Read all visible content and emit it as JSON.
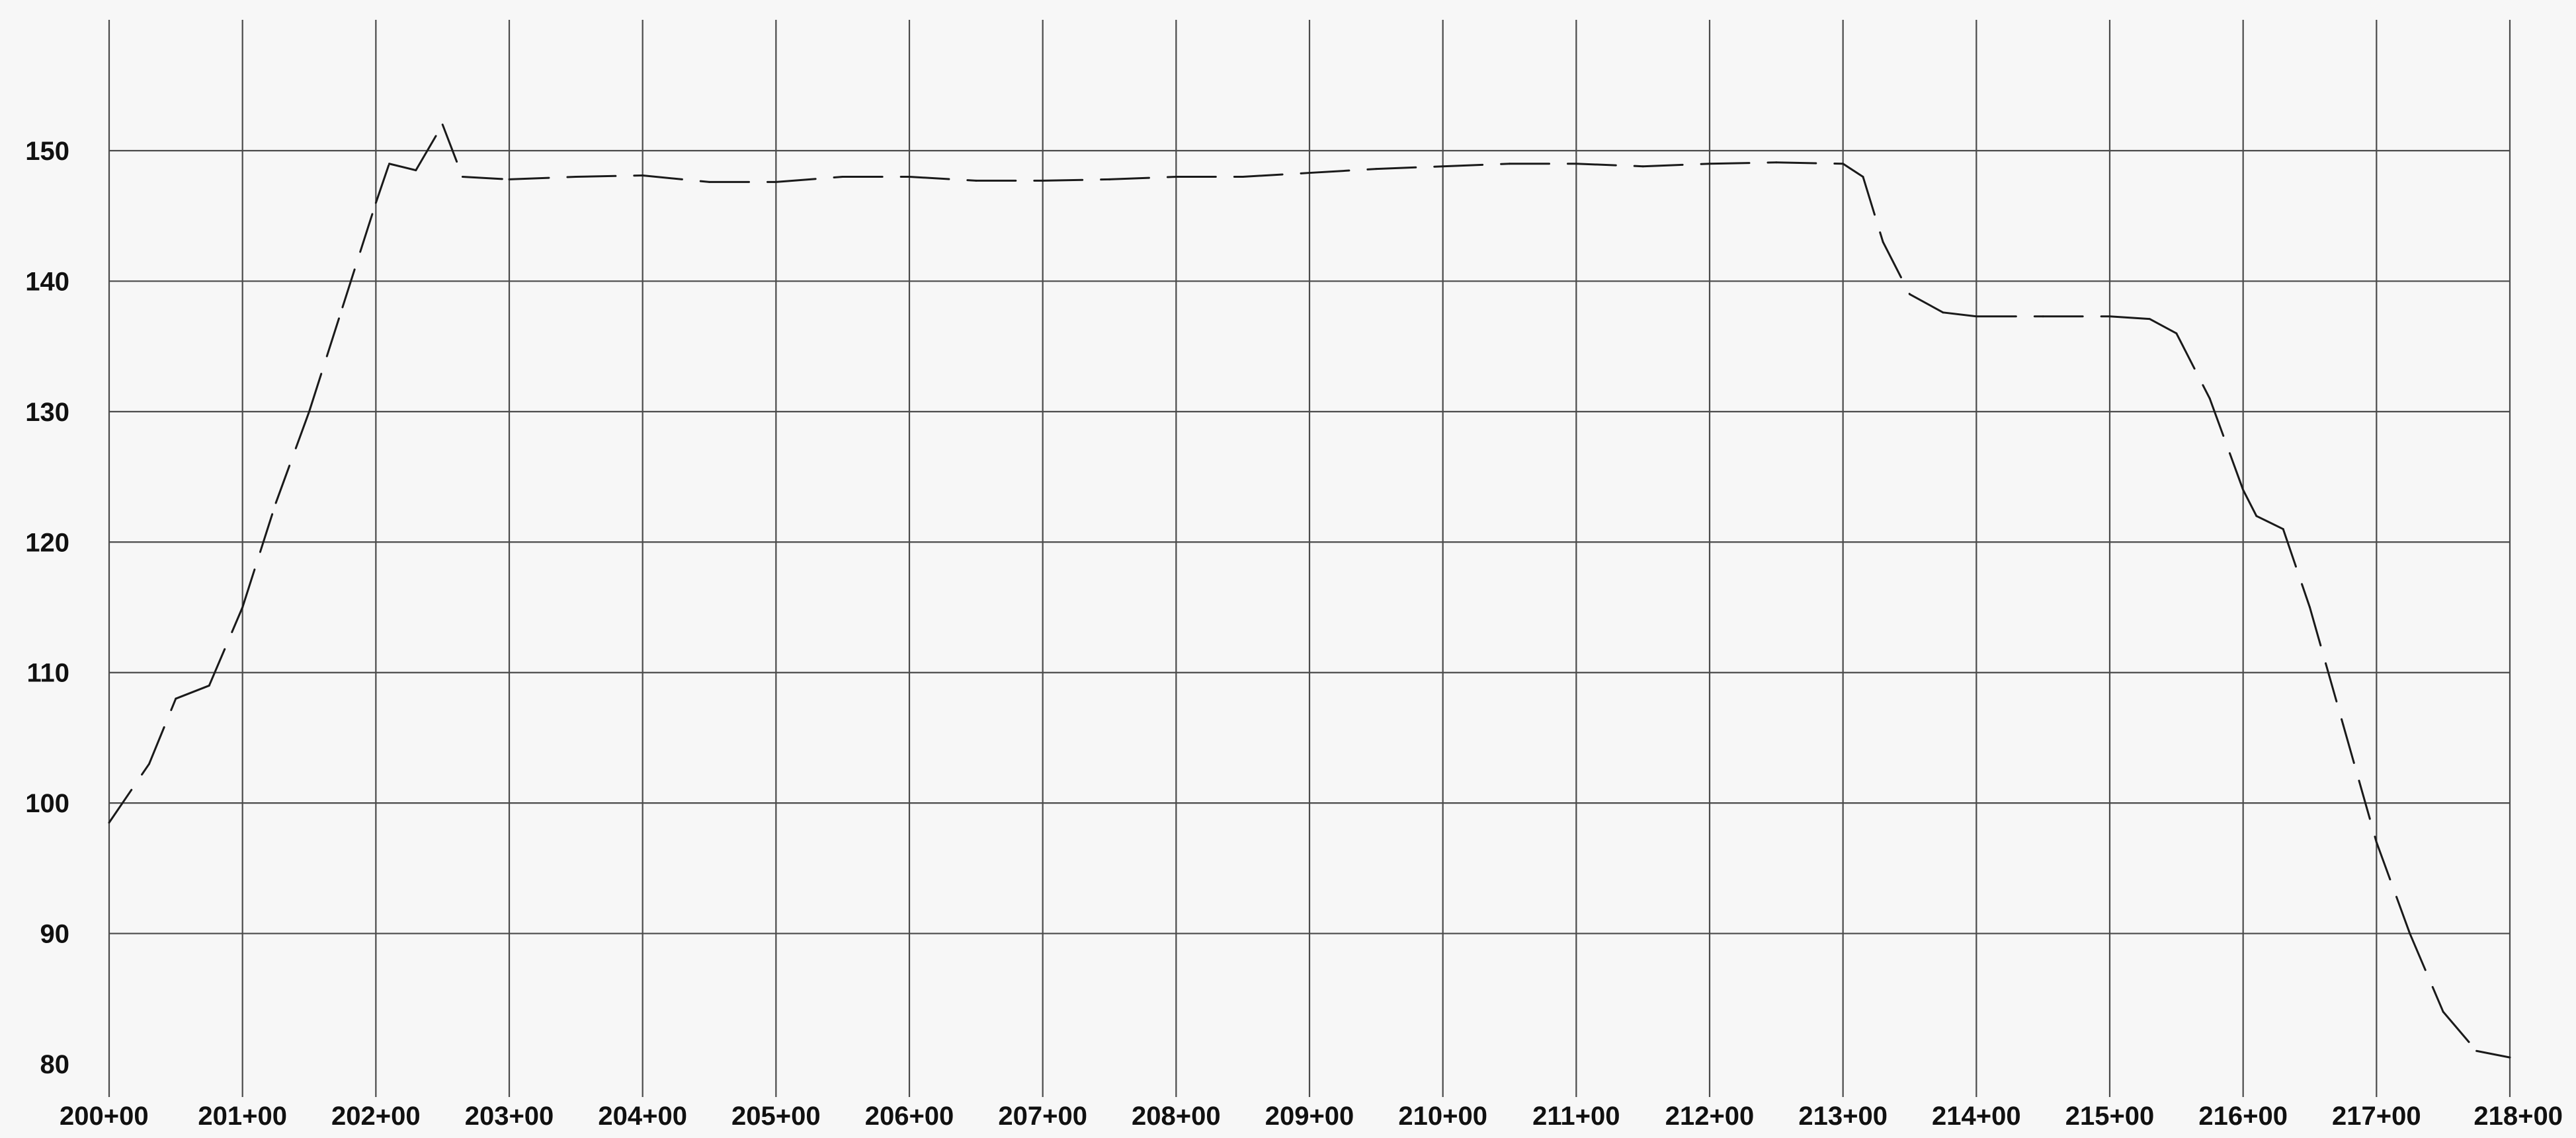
{
  "chart_data": {
    "type": "line",
    "title": "",
    "xlabel": "",
    "ylabel": "",
    "xlim": [
      200,
      218
    ],
    "ylim": [
      80,
      150
    ],
    "grid": true,
    "legend": "none",
    "x_ticks": [
      {
        "value": 200,
        "label": "200+00"
      },
      {
        "value": 201,
        "label": "201+00"
      },
      {
        "value": 202,
        "label": "202+00"
      },
      {
        "value": 203,
        "label": "203+00"
      },
      {
        "value": 204,
        "label": "204+00"
      },
      {
        "value": 205,
        "label": "205+00"
      },
      {
        "value": 206,
        "label": "206+00"
      },
      {
        "value": 207,
        "label": "207+00"
      },
      {
        "value": 208,
        "label": "208+00"
      },
      {
        "value": 209,
        "label": "209+00"
      },
      {
        "value": 210,
        "label": "210+00"
      },
      {
        "value": 211,
        "label": "211+00"
      },
      {
        "value": 212,
        "label": "212+00"
      },
      {
        "value": 213,
        "label": "213+00"
      },
      {
        "value": 214,
        "label": "214+00"
      },
      {
        "value": 215,
        "label": "215+00"
      },
      {
        "value": 216,
        "label": "216+00"
      },
      {
        "value": 217,
        "label": "217+00"
      },
      {
        "value": 218,
        "label": "218+00"
      }
    ],
    "y_ticks": [
      {
        "value": 80,
        "label": "80"
      },
      {
        "value": 90,
        "label": "90"
      },
      {
        "value": 100,
        "label": "100"
      },
      {
        "value": 110,
        "label": "110"
      },
      {
        "value": 120,
        "label": "120"
      },
      {
        "value": 130,
        "label": "130"
      },
      {
        "value": 140,
        "label": "140"
      },
      {
        "value": 150,
        "label": "150"
      }
    ],
    "series": [
      {
        "style": "dashed",
        "color": "#1a1a1a",
        "points": [
          [
            200.0,
            98.5
          ],
          [
            200.3,
            103
          ],
          [
            200.5,
            108
          ],
          [
            200.75,
            109
          ],
          [
            201.0,
            115
          ],
          [
            201.25,
            123
          ],
          [
            201.5,
            130
          ],
          [
            201.75,
            138
          ],
          [
            202.0,
            146
          ],
          [
            202.1,
            149
          ],
          [
            202.3,
            148.5
          ],
          [
            202.5,
            152
          ],
          [
            202.65,
            148
          ],
          [
            203.0,
            147.8
          ],
          [
            203.5,
            148
          ],
          [
            204.0,
            148.1
          ],
          [
            204.5,
            147.6
          ],
          [
            205.0,
            147.6
          ],
          [
            205.5,
            148
          ],
          [
            206.0,
            148
          ],
          [
            206.5,
            147.7
          ],
          [
            207.0,
            147.7
          ],
          [
            207.5,
            147.8
          ],
          [
            208.0,
            148
          ],
          [
            208.5,
            148
          ],
          [
            209.0,
            148.3
          ],
          [
            209.5,
            148.6
          ],
          [
            210.0,
            148.8
          ],
          [
            210.5,
            149
          ],
          [
            211.0,
            149
          ],
          [
            211.5,
            148.8
          ],
          [
            212.0,
            149
          ],
          [
            212.5,
            149.1
          ],
          [
            213.0,
            149
          ],
          [
            213.15,
            148
          ],
          [
            213.3,
            143
          ],
          [
            213.5,
            139
          ],
          [
            213.75,
            137.6
          ],
          [
            214.0,
            137.3
          ],
          [
            214.5,
            137.3
          ],
          [
            215.0,
            137.3
          ],
          [
            215.3,
            137.1
          ],
          [
            215.5,
            136
          ],
          [
            215.75,
            131
          ],
          [
            216.0,
            124
          ],
          [
            216.1,
            122
          ],
          [
            216.3,
            121
          ],
          [
            216.5,
            115
          ],
          [
            216.75,
            106
          ],
          [
            217.0,
            97
          ],
          [
            217.25,
            90
          ],
          [
            217.5,
            84
          ],
          [
            217.75,
            81
          ],
          [
            218.0,
            80.5
          ]
        ]
      }
    ]
  }
}
